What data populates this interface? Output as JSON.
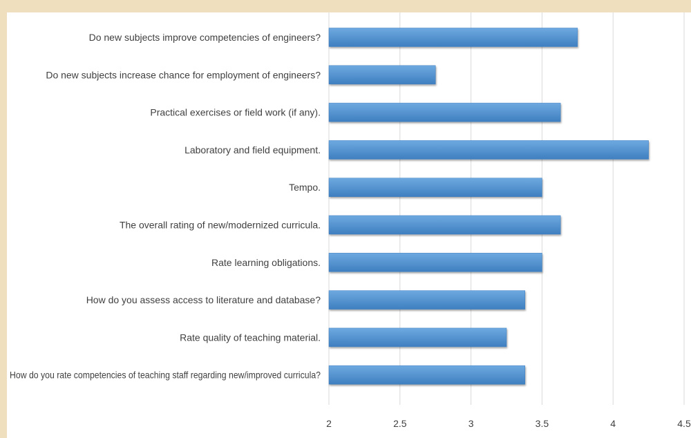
{
  "chart_data": {
    "type": "bar",
    "orientation": "horizontal",
    "title": "",
    "xlabel": "",
    "ylabel": "",
    "categories": [
      "Do new subjects improve competencies of engineers?",
      "Do new subjects increase chance for employment of engineers?",
      "Practical exercises or field work (if any).",
      "Laboratory and field equipment.",
      "Tempo.",
      "The overall rating of new/modernized curricula.",
      "Rate learning obligations.",
      "How do you assess access to literature and database?",
      "Rate quality of teaching material.",
      "How do you rate competencies of teaching staff regarding new/improved curricula?"
    ],
    "values": [
      3.75,
      2.75,
      3.63,
      4.25,
      3.5,
      3.63,
      3.5,
      3.38,
      3.25,
      3.38
    ],
    "xlim": [
      2,
      4.5
    ],
    "xticks": [
      "2",
      "2.5",
      "3",
      "3.5",
      "4",
      "4.5"
    ],
    "grid": "vertical",
    "legend": "none",
    "colors": {
      "bar": "#5b9bd5",
      "bar_dark": "#3f7fc0",
      "background": "#efdfbf",
      "panel": "#ffffff",
      "text": "#404040"
    }
  }
}
